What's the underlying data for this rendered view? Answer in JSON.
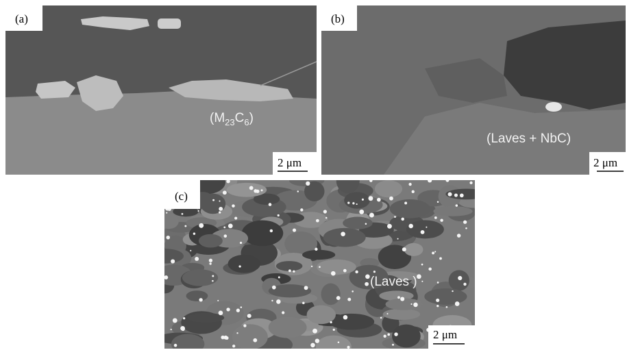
{
  "panels": [
    {
      "label": "(a)",
      "annotation": {
        "parts": [
          "(M",
          "23",
          "C",
          "6",
          ")"
        ]
      },
      "scale": "2 μm"
    },
    {
      "label": "(b)",
      "annotation": {
        "parts": [
          "(Laves + NbC)"
        ]
      },
      "scale": "2 μm"
    },
    {
      "label": "(c)",
      "annotation": {
        "parts": [
          "(Laves )"
        ]
      },
      "scale": "2 μm"
    }
  ]
}
